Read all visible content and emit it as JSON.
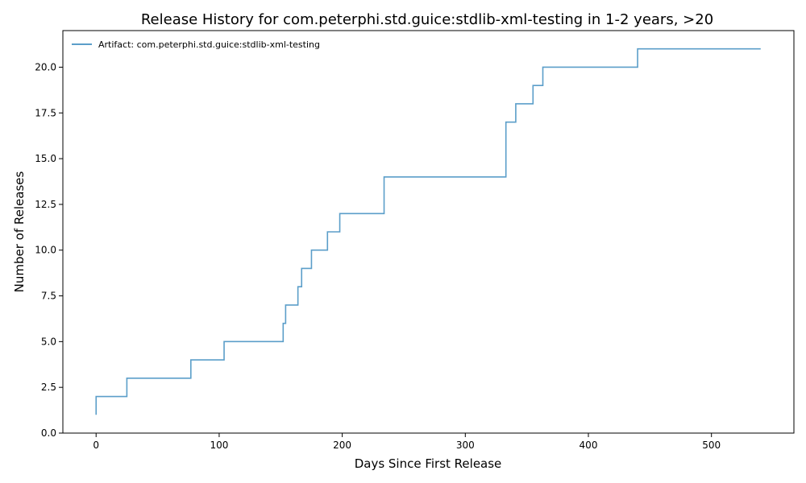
{
  "chart_data": {
    "type": "line",
    "step": "post",
    "title": "Release History for com.peterphi.std.guice:stdlib-xml-testing in 1-2 years, >20",
    "xlabel": "Days Since First Release",
    "ylabel": "Number of Releases",
    "xlim": [
      -27,
      567
    ],
    "ylim": [
      0,
      22
    ],
    "x_ticks": [
      0,
      100,
      200,
      300,
      400,
      500
    ],
    "y_ticks": [
      0.0,
      2.5,
      5.0,
      7.5,
      10.0,
      12.5,
      15.0,
      17.5,
      20.0
    ],
    "x_tick_labels": [
      "0",
      "100",
      "200",
      "300",
      "400",
      "500"
    ],
    "y_tick_labels": [
      "0.0",
      "2.5",
      "5.0",
      "7.5",
      "10.0",
      "12.5",
      "15.0",
      "17.5",
      "20.0"
    ],
    "grid": false,
    "legend_position": "top-left",
    "series": [
      {
        "name": "Artifact: com.peterphi.std.guice:stdlib-xml-testing",
        "color": "#5b9ec9",
        "x": [
          0,
          0,
          25,
          77,
          104,
          152,
          154,
          164,
          167,
          175,
          188,
          198,
          234,
          333,
          341,
          355,
          363,
          440,
          540
        ],
        "y": [
          1,
          2,
          3,
          4,
          5,
          6,
          7,
          8,
          9,
          10,
          11,
          12,
          14,
          17,
          18,
          19,
          20,
          21,
          21
        ]
      }
    ]
  }
}
